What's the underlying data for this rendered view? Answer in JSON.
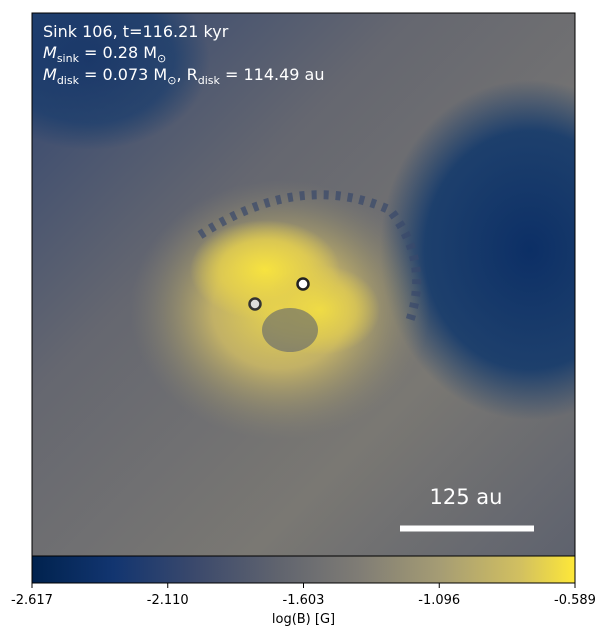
{
  "annotations": {
    "line1": "Sink 106, t=116.21 kyr",
    "line2": [
      {
        "text": "M"
      },
      {
        "text": "sink",
        "sub": true
      },
      {
        "text": " = 0.28 M"
      },
      {
        "text": "⊙",
        "sub": true
      }
    ],
    "line3": [
      {
        "text": "M"
      },
      {
        "text": "disk",
        "sub": true
      },
      {
        "text": " = 0.073 M"
      },
      {
        "text": "⊙",
        "sub": true
      },
      {
        "text": ", R"
      },
      {
        "text": "disk",
        "sub": true
      },
      {
        "text": " = 114.49 au"
      }
    ]
  },
  "scale_bar": {
    "label": "125 au"
  },
  "colorbar": {
    "label": "log(B) [G]",
    "clim": [
      -2.617,
      -0.589
    ],
    "ticks": [
      -2.617,
      {
        "value": -2.11,
        "label": "-2.110"
      },
      -1.603,
      -1.096,
      -0.589
    ],
    "colormap": "cividis"
  }
}
